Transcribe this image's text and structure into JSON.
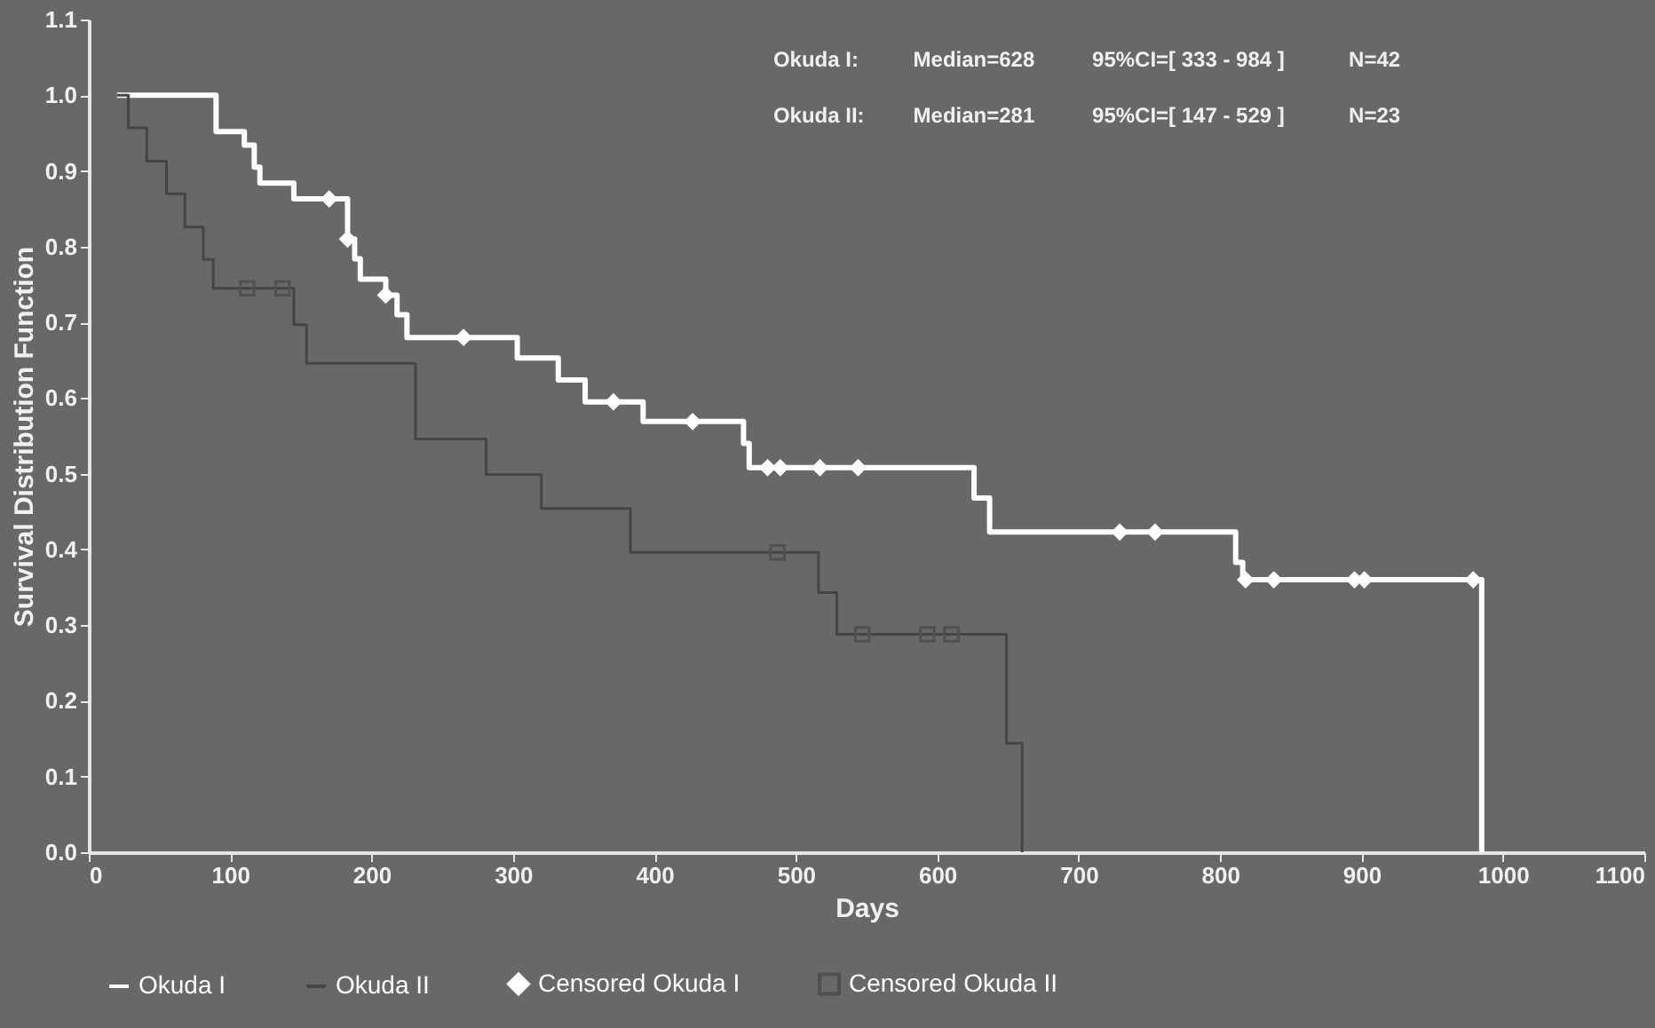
{
  "chart_data": {
    "type": "step",
    "xlabel": "Days",
    "ylabel": "Survival Distribution Function",
    "xlim": [
      0,
      1100
    ],
    "xticks": [
      0,
      100,
      200,
      300,
      400,
      500,
      600,
      700,
      800,
      900,
      1000,
      1100
    ],
    "ylim": [
      0,
      1.1
    ],
    "yticks": [
      {
        "value": 0,
        "label": "0.0"
      },
      {
        "value": 0.1,
        "label": "0.1"
      },
      {
        "value": 0.2,
        "label": "0.2"
      },
      {
        "value": 0.3,
        "label": "0.3"
      },
      {
        "value": 0.4,
        "label": "0.4"
      },
      {
        "value": 0.5,
        "label": "0.5"
      },
      {
        "value": 0.6,
        "label": "0.6"
      },
      {
        "value": 0.7,
        "label": "0.7"
      },
      {
        "value": 0.8,
        "label": "0.8"
      },
      {
        "value": 0.9,
        "label": "0.9"
      },
      {
        "value": 1,
        "label": "1.0"
      },
      {
        "value": 1.1,
        "label": "1.1"
      }
    ],
    "grid": false,
    "legend": "bottom",
    "annotations": [
      "Okuda I:",
      "Median=628",
      "95%CI=[ 333 - 984 ]",
      "N=42",
      "Okuda II:",
      "Median=281",
      "95%CI=[ 147 - 529 ]",
      "N=23"
    ],
    "series": [
      {
        "name": "Okuda I",
        "color": "#ffffff",
        "marker": "none",
        "x": [
          20,
          90,
          110,
          117,
          121,
          145,
          183,
          188,
          192,
          210,
          218,
          225,
          303,
          332,
          351,
          392,
          463,
          467,
          626,
          637,
          811,
          816,
          985
        ],
        "values": [
          1.0,
          0.952,
          0.934,
          0.905,
          0.884,
          0.863,
          0.81,
          0.784,
          0.757,
          0.736,
          0.71,
          0.68,
          0.653,
          0.624,
          0.595,
          0.569,
          0.54,
          0.508,
          0.468,
          0.423,
          0.383,
          0.36,
          0.0
        ]
      },
      {
        "name": "Okuda II",
        "color": "#454545",
        "marker": "none",
        "x": [
          20,
          28,
          41,
          55,
          68,
          81,
          88,
          145,
          154,
          231,
          281,
          320,
          383,
          516,
          529,
          649,
          660
        ],
        "values": [
          1.0,
          0.957,
          0.913,
          0.87,
          0.826,
          0.783,
          0.745,
          0.697,
          0.646,
          0.546,
          0.499,
          0.454,
          0.396,
          0.343,
          0.288,
          0.144,
          0.0
        ]
      },
      {
        "name": "Censored Okuda I",
        "type": "scatter",
        "color": "#ffffff",
        "marker": "diamond",
        "x": [
          170,
          183,
          210,
          265,
          371,
          427,
          480,
          489,
          517,
          544,
          729,
          754,
          818,
          838,
          895,
          902,
          979
        ],
        "values": [
          0.863,
          0.81,
          0.736,
          0.68,
          0.595,
          0.569,
          0.508,
          0.508,
          0.508,
          0.508,
          0.423,
          0.423,
          0.36,
          0.36,
          0.36,
          0.36,
          0.36
        ]
      },
      {
        "name": "Censored Okuda II",
        "type": "scatter",
        "color": "#505050",
        "marker": "square",
        "x": [
          112,
          137,
          487,
          547,
          593,
          610
        ],
        "values": [
          0.745,
          0.745,
          0.396,
          0.288,
          0.288,
          0.288
        ]
      }
    ]
  }
}
